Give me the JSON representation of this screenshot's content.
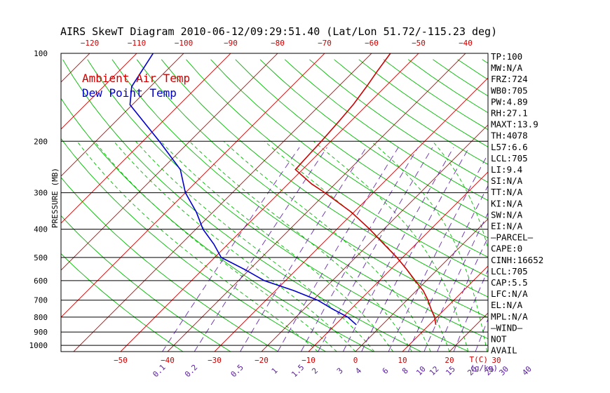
{
  "chart_data": {
    "type": "line",
    "title": "AIRS SkewT Diagram 2010-06-12/09:29:51.40 (Lat/Lon 51.72/-115.23 deg)",
    "ylabel": "PRESSURE (MB)",
    "y_scale": "log",
    "ylim": [
      1050,
      100
    ],
    "y_ticks": [
      100,
      200,
      300,
      400,
      500,
      600,
      700,
      800,
      900,
      1000
    ],
    "top_axis_ticks": [
      -120,
      -110,
      -100,
      -90,
      -80,
      -70,
      -60,
      -50,
      -40
    ],
    "bottom_temp_ticks": [
      -50,
      -40,
      -30,
      -20,
      -10,
      0,
      10,
      20,
      30
    ],
    "bottom_temp_label": "T(C)",
    "mixing_ratio_ticks": [
      "0.1",
      "0.2",
      "0.5",
      "1",
      "1.5",
      "2",
      "3",
      "4",
      "6",
      "8",
      "10",
      "12",
      "15",
      "20",
      "25",
      "30",
      "40"
    ],
    "mixing_ratio_label": "(g/kg)",
    "legend": [
      "Ambient Air Temp",
      "Dew Point Temp"
    ],
    "colors": {
      "ambient": "#cc0000",
      "dewpoint": "#0000cc",
      "isotherm": "#cc0000",
      "dry_adiabat": "#00bb00",
      "moist_adiabat": "#00bb00",
      "mixing_ratio": "#6a2ab0",
      "isobar": "#000000"
    },
    "series": [
      {
        "name": "Ambient Air Temp",
        "pressure": [
          850,
          800,
          750,
          700,
          650,
          600,
          550,
          500,
          450,
          400,
          350,
          300,
          280,
          250,
          220,
          200,
          170,
          150,
          130,
          115,
          100
        ],
        "values": [
          11.4,
          9.5,
          7.0,
          4.5,
          1.5,
          -2.4,
          -6.5,
          -11.2,
          -16.8,
          -23.0,
          -30.5,
          -40.3,
          -45.0,
          -51.5,
          -51.8,
          -52.0,
          -52.5,
          -53.0,
          -54.0,
          -55.0,
          -56.0
        ]
      },
      {
        "name": "Dew Point Temp",
        "pressure": [
          850,
          800,
          750,
          700,
          650,
          600,
          550,
          500,
          450,
          400,
          350,
          300,
          250,
          200,
          150,
          130,
          100
        ],
        "values": [
          -5.5,
          -9.0,
          -14.0,
          -19.0,
          -26.0,
          -34.5,
          -41.0,
          -48.6,
          -53.0,
          -58.5,
          -63.5,
          -70.0,
          -76.0,
          -86.5,
          -100.5,
          -104.0,
          -106.5
        ]
      }
    ]
  },
  "side_panel": [
    "TP:100",
    "MW:N/A",
    "FRZ:724",
    "WB0:705",
    "PW:4.89",
    "RH:27.1",
    "MAXT:13.9",
    "TH:4078",
    "L57:6.6",
    "LCL:705",
    "LI:9.4",
    "SI:N/A",
    "TT:N/A",
    "KI:N/A",
    "SW:N/A",
    "EI:N/A",
    "—PARCEL—",
    "CAPE:0",
    "CINH:16652",
    "LCL:705",
    "CAP:5.5",
    "LFC:N/A",
    "EL:N/A",
    "MPL:N/A",
    "—WIND—",
    "NOT",
    "AVAIL"
  ]
}
